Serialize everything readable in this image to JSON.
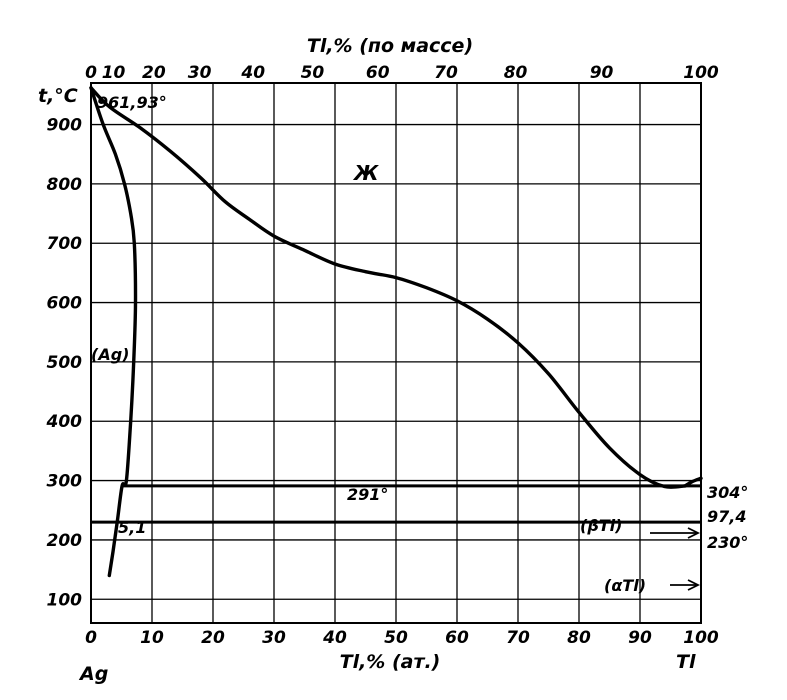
{
  "chart_data": {
    "type": "line",
    "title": "Tl,% (по массе)",
    "xlabel": "Tl,% (ат.)",
    "ylabel": "t,°C",
    "x_ticks_bottom": [
      0,
      10,
      20,
      30,
      40,
      50,
      60,
      70,
      80,
      90,
      100
    ],
    "x_ticks_top": [
      0,
      10,
      20,
      30,
      40,
      50,
      60,
      70,
      80,
      90,
      100
    ],
    "y_ticks": [
      100,
      200,
      300,
      400,
      500,
      600,
      700,
      800,
      900
    ],
    "xlim": [
      0,
      100
    ],
    "ylim": [
      60,
      970
    ],
    "grid": true,
    "left_component": "Ag",
    "right_component": "Tl",
    "series": [
      {
        "key": "liquidus",
        "x": [
          0,
          3,
          8,
          13,
          18,
          22,
          26,
          30,
          35,
          40,
          45,
          50,
          55,
          60,
          65,
          70,
          75,
          80,
          85,
          90,
          94,
          97.4
        ],
        "y": [
          961.93,
          930,
          895,
          855,
          810,
          770,
          740,
          712,
          688,
          665,
          652,
          642,
          625,
          603,
          572,
          532,
          480,
          415,
          355,
          310,
          290,
          291
        ]
      },
      {
        "key": "solvus",
        "x": [
          0,
          2,
          4,
          5.5,
          6.5,
          7.1,
          7.3,
          7.0,
          6.5,
          5.8,
          5.1,
          4.3,
          3.6,
          3.0
        ],
        "y": [
          961.93,
          900,
          850,
          800,
          750,
          700,
          600,
          500,
          400,
          300,
          291,
          230,
          180,
          140
        ]
      },
      {
        "key": "Tl-liquidus",
        "x": [
          97.4,
          98.5,
          100
        ],
        "y": [
          291,
          298,
          304
        ]
      }
    ],
    "lines": [
      {
        "y": 291,
        "x_from": 5.1,
        "x_to": 100
      },
      {
        "y": 230,
        "x_from": 0,
        "x_to": 100
      }
    ],
    "annotations": {
      "ag_melt": "961,93°",
      "liquid": "Ж",
      "ag_phase": "(Ag)",
      "eutectic_t": "291°",
      "eutectic_solubility": "5,1",
      "tl_melt": "304°",
      "eutectic_comp": "97,4",
      "transition": "230°",
      "beta_tl": "(βTl)",
      "alpha_tl": "(αTl)"
    }
  }
}
